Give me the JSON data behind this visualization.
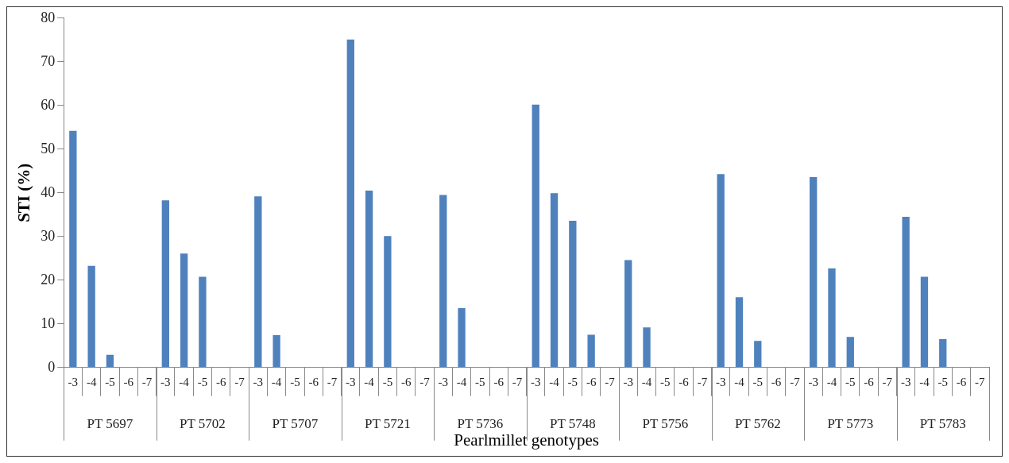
{
  "chart_data": {
    "type": "bar",
    "ylabel": "STI (%)",
    "xlabel": "Pearlmillet genotypes",
    "categories": [
      "-3",
      "-4",
      "-5",
      "-6",
      "-7",
      "-3",
      "-4",
      "-5",
      "-6",
      "-7",
      "-3",
      "-4",
      "-5",
      "-6",
      "-7",
      "-3",
      "-4",
      "-5",
      "-6",
      "-7",
      "-3",
      "-4",
      "-5",
      "-6",
      "-7",
      "-3",
      "-4",
      "-5",
      "-6",
      "-7",
      "-3",
      "-4",
      "-5",
      "-6",
      "-7",
      "-3",
      "-4",
      "-5",
      "-6",
      "-7",
      "-3",
      "-4",
      "-5",
      "-6",
      "-7",
      "-3",
      "-4",
      "-5",
      "-6",
      "-7"
    ],
    "values": [
      54.2,
      23.3,
      2.9,
      0,
      0,
      38.3,
      26.1,
      20.8,
      0,
      0,
      39.2,
      7.4,
      0,
      0,
      0,
      75.1,
      40.5,
      30.1,
      0,
      0,
      39.5,
      13.6,
      0,
      0,
      0,
      60.2,
      39.9,
      33.6,
      7.5,
      0,
      24.6,
      9.2,
      0,
      0,
      0,
      44.3,
      16.1,
      6.1,
      0,
      0,
      43.6,
      22.7,
      7.0,
      0,
      0,
      34.5,
      20.8,
      6.5,
      0,
      0
    ],
    "color": "#4f81bd",
    "annotations": [
      "PT 5697",
      "PT 5702",
      "PT 5707",
      "PT 5721",
      "PT 5736",
      "PT 5748",
      "PT 5756",
      "PT 5762",
      "PT 5773",
      "PT 5783"
    ],
    "ylim": [
      0,
      80
    ],
    "yticks": [
      0,
      10,
      20,
      30,
      40,
      50,
      60,
      70,
      80
    ],
    "grid": false,
    "legend": false
  }
}
